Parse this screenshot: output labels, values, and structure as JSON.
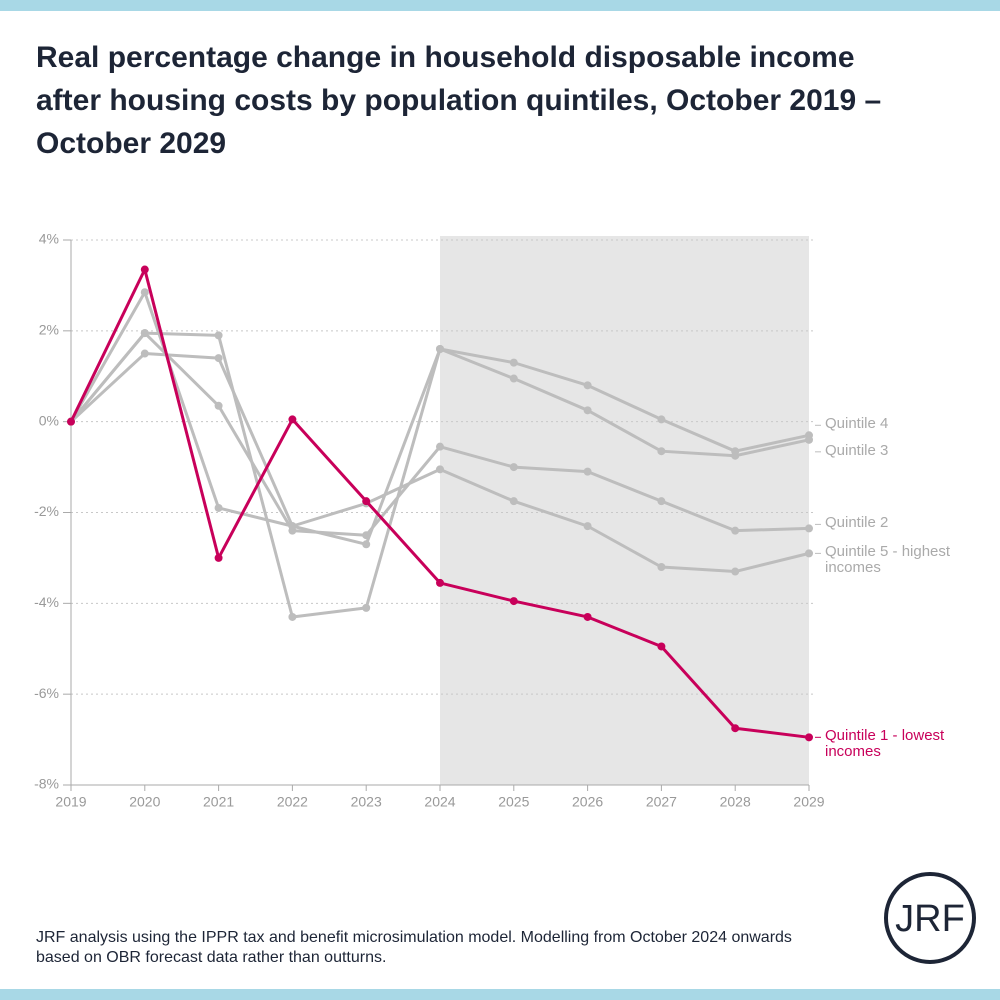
{
  "chart_data": {
    "type": "line",
    "title": "Real percentage change in household disposable income after housing costs by population quintiles, October 2019 – October 2029",
    "note": "JRF analysis using the IPPR tax and benefit microsimulation model. Modelling from October 2024 onwards based on OBR forecast data rather than outturns.",
    "logo": "JRF",
    "x": [
      2019,
      2020,
      2021,
      2022,
      2023,
      2024,
      2025,
      2026,
      2027,
      2028,
      2029
    ],
    "xlim": [
      2019,
      2029
    ],
    "xticks": [
      2019,
      2020,
      2021,
      2022,
      2023,
      2024,
      2025,
      2026,
      2027,
      2028,
      2029
    ],
    "ylim": [
      -8,
      4
    ],
    "yticks": [
      {
        "value": -8,
        "label": "-8%"
      },
      {
        "value": -6,
        "label": "-6%"
      },
      {
        "value": -4,
        "label": "-4%"
      },
      {
        "value": -2,
        "label": "-2%"
      },
      {
        "value": 0,
        "label": "0%"
      },
      {
        "value": 2,
        "label": "2%"
      },
      {
        "value": 4,
        "label": "4%"
      }
    ],
    "grid": true,
    "shaded_range": [
      2024,
      2029
    ],
    "series": [
      {
        "name": "Quintile 4",
        "color": "#bdbdbd",
        "values": [
          0,
          1.95,
          1.9,
          -4.3,
          -4.1,
          1.6,
          1.3,
          0.8,
          0.05,
          -0.65,
          -0.3
        ]
      },
      {
        "name": "Quintile 3",
        "color": "#bdbdbd",
        "values": [
          0,
          1.5,
          1.4,
          -2.3,
          -2.7,
          1.6,
          0.95,
          0.25,
          -0.65,
          -0.75,
          -0.4
        ]
      },
      {
        "name": "Quintile 2",
        "color": "#bdbdbd",
        "values": [
          0,
          1.95,
          0.35,
          -2.4,
          -2.5,
          -0.55,
          -1.0,
          -1.1,
          -1.75,
          -2.4,
          -2.35
        ]
      },
      {
        "name": "Quintile 5 - highest incomes",
        "color": "#bdbdbd",
        "values": [
          0,
          2.85,
          -1.9,
          -2.3,
          -1.8,
          -1.05,
          -1.75,
          -2.3,
          -3.2,
          -3.3,
          -2.9
        ]
      },
      {
        "name": "Quintile 1 - lowest incomes",
        "color": "#c8005a",
        "values": [
          0,
          3.35,
          -3.0,
          0.05,
          -1.75,
          -3.55,
          -3.95,
          -4.3,
          -4.95,
          -6.75,
          -6.95
        ]
      }
    ]
  }
}
